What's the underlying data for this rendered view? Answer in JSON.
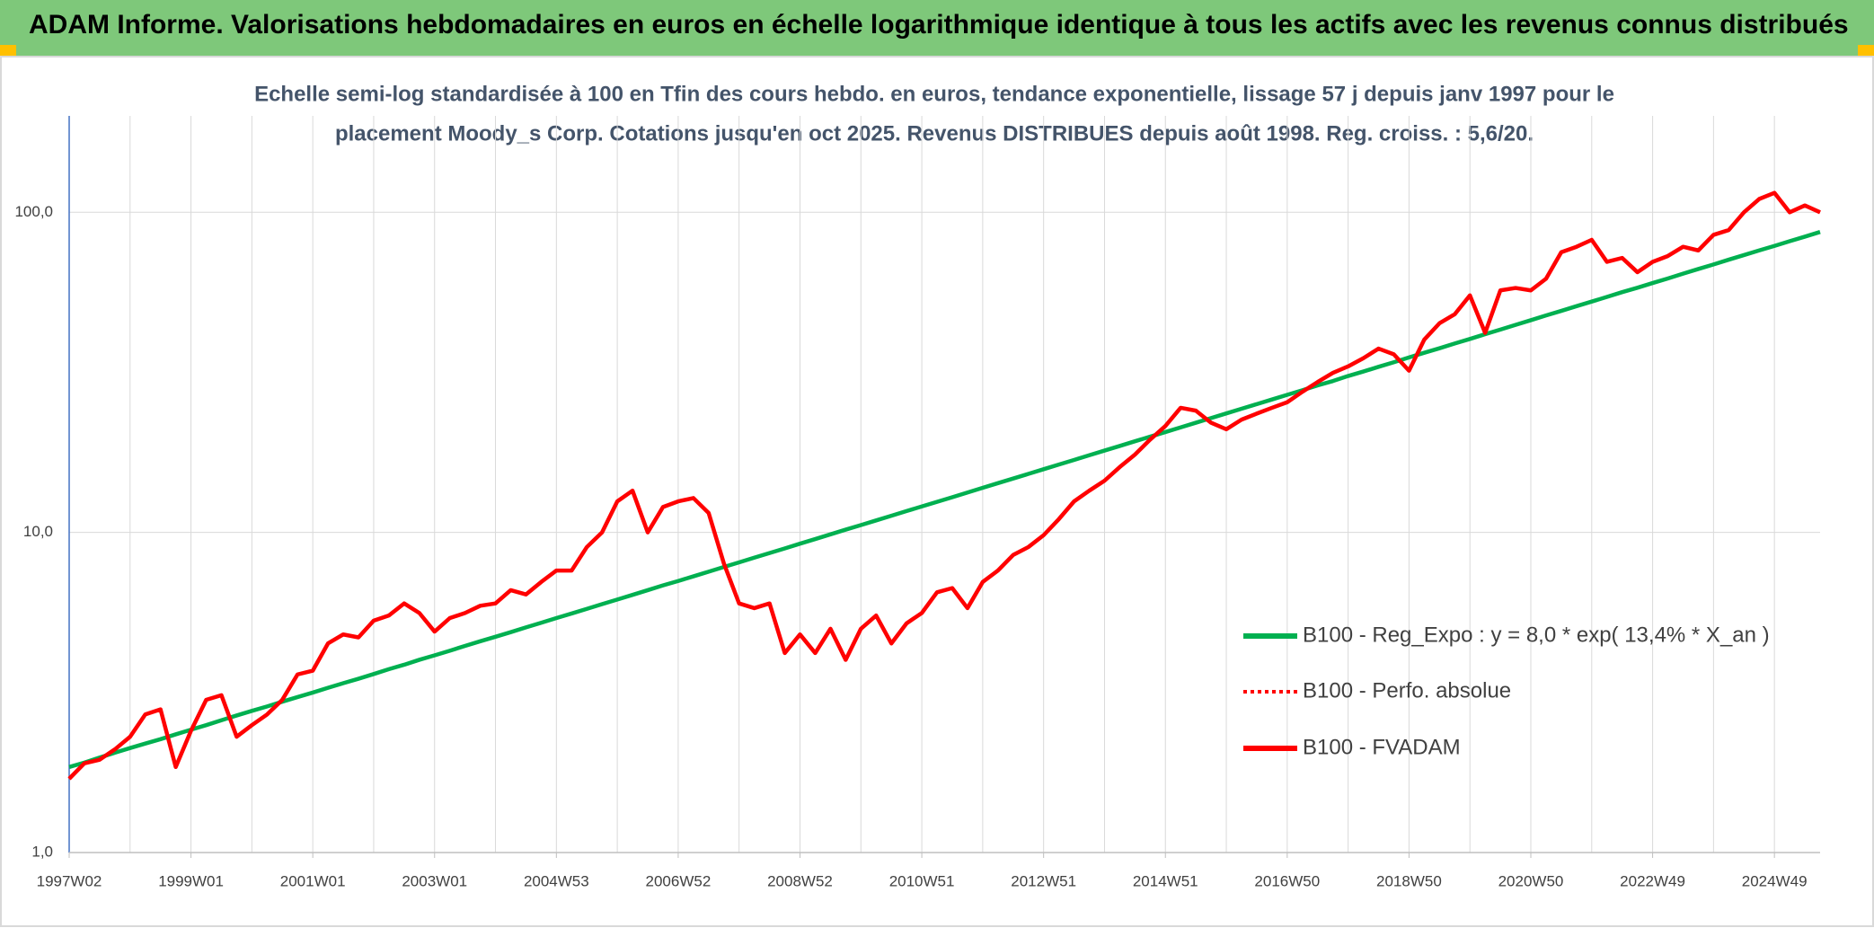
{
  "header": {
    "title": "ADAM Informe. Valorisations hebdomadaires en euros en échelle logarithmique identique à tous les actifs avec les revenus connus distribués"
  },
  "chart_data": {
    "type": "line",
    "subtitle": [
      "Echelle semi-log standardisée à 100 en Tfin des cours hebdo. en euros, tendance exponentielle, lissage 57 j depuis janv 1997 pour le",
      "placement Moody_s Corp. Cotations jusqu'en oct 2025. Revenus DISTRIBUES depuis août 1998. Reg. croiss. : 5,6/20."
    ],
    "log_scale": true,
    "grid": true,
    "legend": "right",
    "ylim": [
      1,
      200
    ],
    "yticks": [
      {
        "value": 1,
        "label": "1,0"
      },
      {
        "value": 10,
        "label": "10,0"
      },
      {
        "value": 100,
        "label": "100,0"
      }
    ],
    "categories": [
      "1997W02",
      null,
      null,
      null,
      null,
      null,
      null,
      null,
      "1999W01",
      null,
      null,
      null,
      null,
      null,
      null,
      null,
      "2001W01",
      null,
      null,
      null,
      null,
      null,
      null,
      null,
      "2003W01",
      null,
      null,
      null,
      null,
      null,
      null,
      null,
      "2004W53",
      null,
      null,
      null,
      null,
      null,
      null,
      null,
      "2006W52",
      null,
      null,
      null,
      null,
      null,
      null,
      null,
      "2008W52",
      null,
      null,
      null,
      null,
      null,
      null,
      null,
      "2010W51",
      null,
      null,
      null,
      null,
      null,
      null,
      null,
      "2012W51",
      null,
      null,
      null,
      null,
      null,
      null,
      null,
      "2014W51",
      null,
      null,
      null,
      null,
      null,
      null,
      null,
      "2016W50",
      null,
      null,
      null,
      null,
      null,
      null,
      null,
      "2018W50",
      null,
      null,
      null,
      null,
      null,
      null,
      null,
      "2020W50",
      null,
      null,
      null,
      null,
      null,
      null,
      null,
      "2022W49",
      null,
      null,
      null,
      null,
      null,
      null,
      null,
      "2024W49",
      null,
      null,
      null
    ],
    "series": [
      {
        "name": "B100 - Reg_Expo : y = 8,0 * exp( 13,4% *  X_an )",
        "color": "#00b050",
        "dash": "solid",
        "values": [
          1.85,
          1.91,
          1.98,
          2.05,
          2.12,
          2.19,
          2.26,
          2.34,
          2.42,
          2.5,
          2.59,
          2.68,
          2.77,
          2.86,
          2.96,
          3.06,
          3.16,
          3.27,
          3.38,
          3.49,
          3.61,
          3.74,
          3.86,
          4.0,
          4.13,
          4.27,
          4.42,
          4.57,
          4.72,
          4.88,
          5.05,
          5.22,
          5.4,
          5.58,
          5.77,
          5.97,
          6.17,
          6.38,
          6.6,
          6.83,
          7.05,
          7.29,
          7.54,
          7.8,
          8.06,
          8.34,
          8.62,
          8.91,
          9.22,
          9.53,
          9.86,
          10.2,
          10.54,
          10.9,
          11.27,
          11.66,
          12.05,
          12.46,
          12.88,
          13.32,
          13.78,
          14.25,
          14.73,
          15.23,
          15.75,
          16.29,
          16.84,
          17.42,
          18.01,
          18.62,
          19.26,
          19.91,
          20.58,
          21.28,
          22.01,
          22.76,
          23.53,
          24.33,
          25.16,
          26.01,
          26.9,
          27.8,
          28.8,
          29.7,
          30.8,
          31.8,
          32.9,
          34.0,
          35.2,
          36.4,
          37.6,
          38.9,
          40.2,
          41.6,
          43.0,
          44.5,
          46.0,
          47.6,
          49.2,
          50.9,
          52.6,
          54.4,
          56.3,
          58.1,
          60.1,
          62.1,
          64.3,
          66.5,
          68.7,
          71.1,
          73.5,
          76.0,
          78.5,
          81.2,
          83.9,
          86.8
        ]
      },
      {
        "name": "B100 - Perfo. absolue",
        "color": "#ff0000",
        "dash": "dotted",
        "values": [
          1.7,
          1.9,
          1.95,
          2.1,
          2.3,
          2.7,
          2.8,
          1.85,
          2.4,
          3.0,
          3.1,
          2.3,
          2.5,
          2.7,
          3.0,
          3.6,
          3.7,
          4.5,
          4.8,
          4.7,
          5.3,
          5.5,
          6.0,
          5.6,
          4.9,
          5.4,
          5.6,
          5.9,
          6.0,
          6.6,
          6.4,
          7.0,
          7.6,
          7.6,
          9.0,
          10.0,
          12.5,
          13.5,
          10.0,
          12.0,
          12.5,
          12.8,
          11.5,
          8.0,
          6.0,
          5.8,
          6.0,
          4.2,
          4.8,
          4.2,
          5.0,
          4.0,
          5.0,
          5.5,
          4.5,
          5.2,
          5.6,
          6.5,
          6.7,
          5.8,
          7.0,
          7.6,
          8.5,
          9.0,
          9.8,
          11.0,
          12.5,
          13.5,
          14.5,
          16.0,
          17.5,
          19.5,
          21.5,
          24.5,
          24.0,
          22.0,
          21.0,
          22.5,
          23.5,
          24.5,
          25.5,
          27.5,
          29.5,
          31.5,
          33.0,
          35.0,
          37.5,
          36.0,
          32.0,
          40.0,
          45.0,
          48.0,
          55.0,
          42.0,
          57.0,
          58.0,
          57.0,
          62.0,
          75.0,
          78.0,
          82.0,
          70.0,
          72.0,
          65.0,
          70.0,
          73.0,
          78.0,
          76.0,
          85.0,
          88.0,
          100.0,
          110.0,
          115.0,
          100.0,
          105.0,
          100.0
        ]
      },
      {
        "name": "B100 - FVADAM",
        "color": "#ff0000",
        "dash": "solid",
        "values": [
          1.7,
          1.9,
          1.95,
          2.1,
          2.3,
          2.7,
          2.8,
          1.85,
          2.4,
          3.0,
          3.1,
          2.3,
          2.5,
          2.7,
          3.0,
          3.6,
          3.7,
          4.5,
          4.8,
          4.7,
          5.3,
          5.5,
          6.0,
          5.6,
          4.9,
          5.4,
          5.6,
          5.9,
          6.0,
          6.6,
          6.4,
          7.0,
          7.6,
          7.6,
          9.0,
          10.0,
          12.5,
          13.5,
          10.0,
          12.0,
          12.5,
          12.8,
          11.5,
          8.0,
          6.0,
          5.8,
          6.0,
          4.2,
          4.8,
          4.2,
          5.0,
          4.0,
          5.0,
          5.5,
          4.5,
          5.2,
          5.6,
          6.5,
          6.7,
          5.8,
          7.0,
          7.6,
          8.5,
          9.0,
          9.8,
          11.0,
          12.5,
          13.5,
          14.5,
          16.0,
          17.5,
          19.5,
          21.5,
          24.5,
          24.0,
          22.0,
          21.0,
          22.5,
          23.5,
          24.5,
          25.5,
          27.5,
          29.5,
          31.5,
          33.0,
          35.0,
          37.5,
          36.0,
          32.0,
          40.0,
          45.0,
          48.0,
          55.0,
          42.0,
          57.0,
          58.0,
          57.0,
          62.0,
          75.0,
          78.0,
          82.0,
          70.0,
          72.0,
          65.0,
          70.0,
          73.0,
          78.0,
          76.0,
          85.0,
          88.0,
          100.0,
          110.0,
          115.0,
          100.0,
          105.0,
          100.0
        ]
      }
    ]
  }
}
